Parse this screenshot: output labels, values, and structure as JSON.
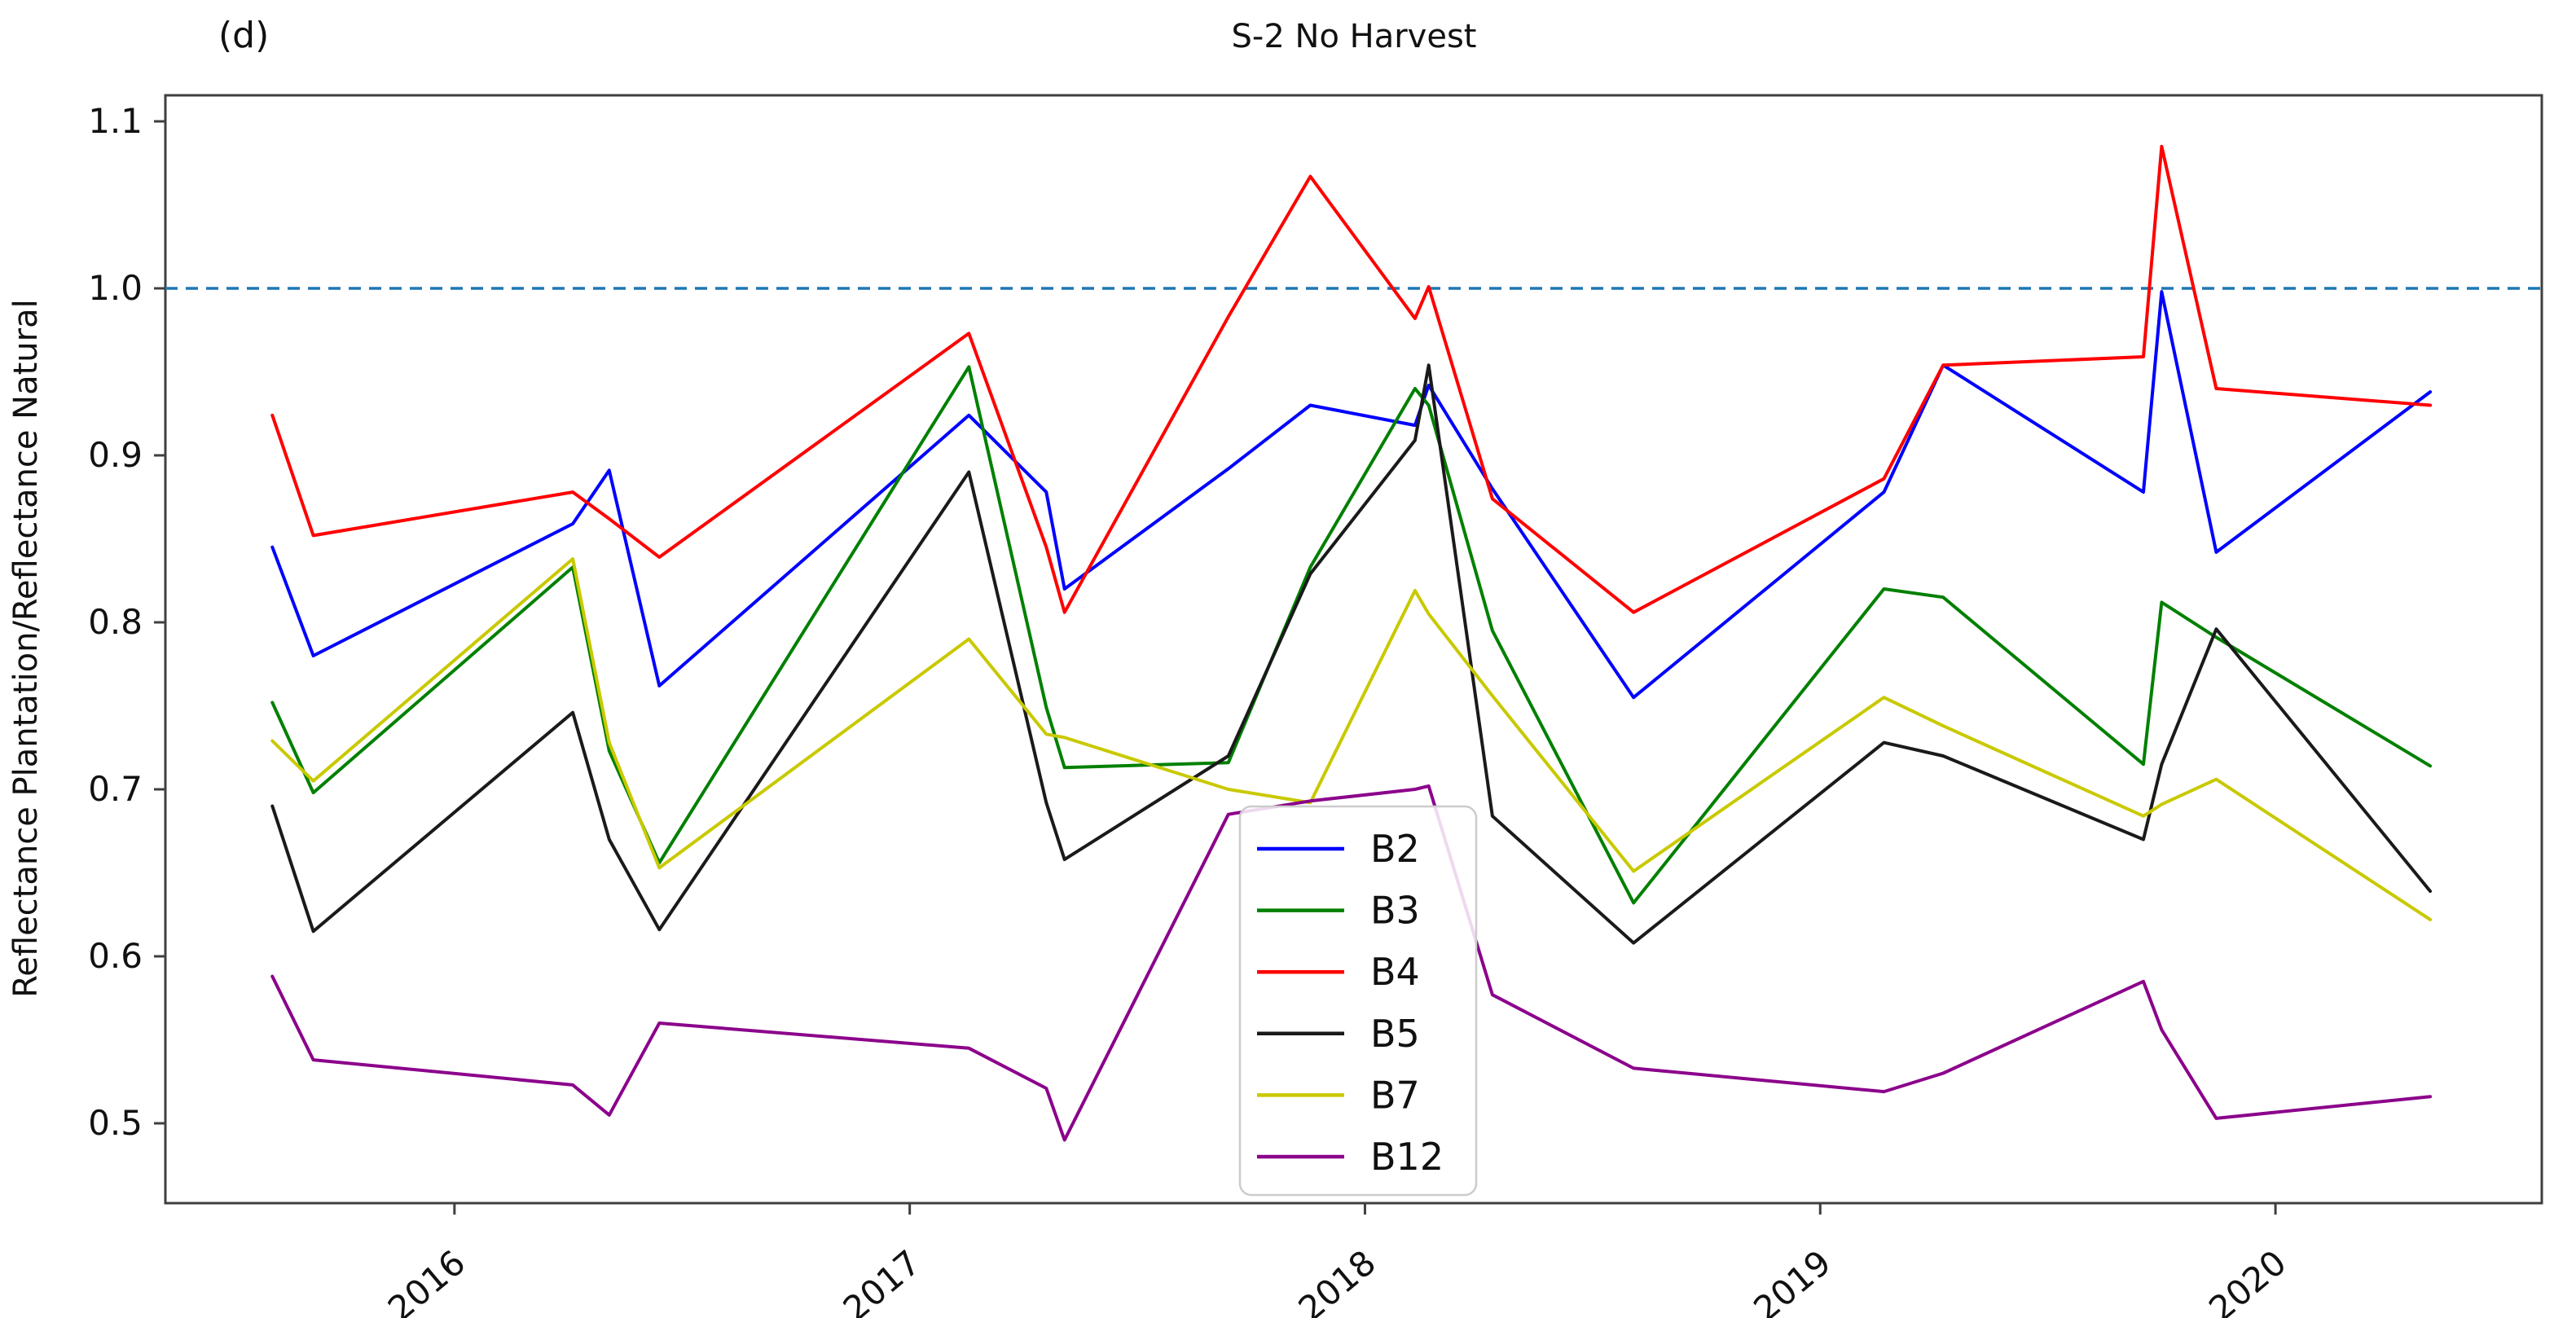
{
  "figure": {
    "corner_label": "(d)",
    "title": "S-2 No Harvest",
    "y_axis_label": "Reflectance Plantation/Reflectance Natural",
    "background_color": "#ffffff",
    "axis_color": "#3f3f3f",
    "text_color": "#111111"
  },
  "chart_data": {
    "type": "line",
    "title": "S-2 No Harvest",
    "xlabel": "",
    "ylabel": "Reflectance Plantation/Reflectance Natural",
    "grid": false,
    "legend_position": "lower center-left inside plot",
    "xlim": [
      2015.365,
      2020.585
    ],
    "ylim": [
      0.4522,
      1.1156
    ],
    "x_ticks": [
      2016,
      2017,
      2018,
      2019,
      2020
    ],
    "x_tick_labels": [
      "2016",
      "2017",
      "2018",
      "2019",
      "2020"
    ],
    "y_ticks": [
      0.5,
      0.6,
      0.7,
      0.8,
      0.9,
      1.0,
      1.1
    ],
    "y_tick_labels": [
      "0.5",
      "0.6",
      "0.7",
      "0.8",
      "0.9",
      "1.0",
      "1.1"
    ],
    "reference_line": {
      "y": 1.0,
      "style": "dashed",
      "color": "#1f77b4"
    },
    "x": [
      2015.6,
      2015.69,
      2016.26,
      2016.34,
      2016.45,
      2017.13,
      2017.3,
      2017.34,
      2017.7,
      2017.88,
      2018.11,
      2018.14,
      2018.28,
      2018.59,
      2019.14,
      2019.27,
      2019.71,
      2019.75,
      2019.87,
      2020.34
    ],
    "series": [
      {
        "name": "B2",
        "color": "#0000ff",
        "values": [
          0.845,
          0.78,
          0.859,
          0.891,
          0.762,
          0.924,
          0.878,
          0.82,
          0.892,
          0.93,
          0.918,
          0.942,
          0.88,
          0.755,
          0.878,
          0.954,
          0.878,
          0.998,
          0.842,
          0.938
        ]
      },
      {
        "name": "B3",
        "color": "#008000",
        "values": [
          0.752,
          0.698,
          0.833,
          0.723,
          0.656,
          0.953,
          0.749,
          0.713,
          0.716,
          0.833,
          0.94,
          0.93,
          0.795,
          0.632,
          0.82,
          0.815,
          0.715,
          0.812,
          0.791,
          0.714
        ]
      },
      {
        "name": "B4",
        "color": "#ff0000",
        "values": [
          0.924,
          0.852,
          0.878,
          0.862,
          0.839,
          0.973,
          0.845,
          0.806,
          0.983,
          1.067,
          0.982,
          1.001,
          0.874,
          0.806,
          0.886,
          0.954,
          0.959,
          1.085,
          0.94,
          0.93
        ]
      },
      {
        "name": "B5",
        "color": "#1a1a1a",
        "values": [
          0.69,
          0.615,
          0.746,
          0.67,
          0.616,
          0.89,
          0.692,
          0.658,
          0.72,
          0.829,
          0.909,
          0.954,
          0.684,
          0.608,
          0.728,
          0.72,
          0.67,
          0.715,
          0.796,
          0.639
        ]
      },
      {
        "name": "B7",
        "color": "#c9c900",
        "values": [
          0.729,
          0.705,
          0.838,
          0.728,
          0.653,
          0.79,
          0.733,
          0.731,
          0.7,
          0.692,
          0.819,
          0.805,
          0.756,
          0.651,
          0.755,
          0.738,
          0.684,
          0.691,
          0.706,
          0.622
        ]
      },
      {
        "name": "B12",
        "color": "#8b008b",
        "values": [
          0.588,
          0.538,
          0.523,
          0.505,
          0.56,
          0.545,
          0.521,
          0.49,
          0.685,
          0.693,
          0.7,
          0.702,
          0.577,
          0.533,
          0.519,
          0.53,
          0.585,
          0.556,
          0.503,
          0.516
        ]
      }
    ]
  },
  "legend": {
    "entries": [
      "B2",
      "B3",
      "B4",
      "B5",
      "B7",
      "B12"
    ]
  }
}
